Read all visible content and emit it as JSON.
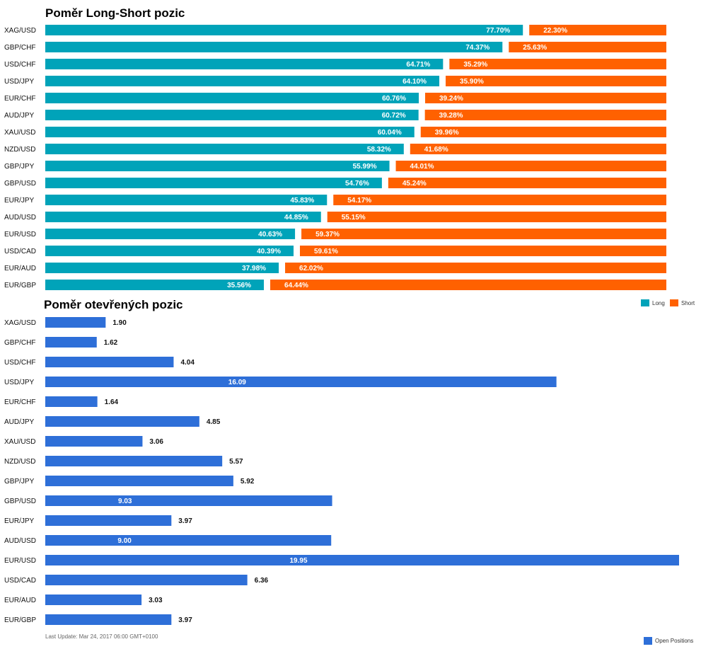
{
  "colors": {
    "long": "#00a3b9",
    "short": "#ff6100",
    "open": "#2e6fd8"
  },
  "chart_data": [
    {
      "type": "bar",
      "stacked": true,
      "orientation": "horizontal",
      "title": "Poměr Long-Short pozic",
      "categories": [
        "XAG/USD",
        "GBP/CHF",
        "USD/CHF",
        "USD/JPY",
        "EUR/CHF",
        "AUD/JPY",
        "XAU/USD",
        "NZD/USD",
        "GBP/JPY",
        "GBP/USD",
        "EUR/JPY",
        "AUD/USD",
        "EUR/USD",
        "USD/CAD",
        "EUR/AUD",
        "EUR/GBP"
      ],
      "series": [
        {
          "name": "Long",
          "values": [
            77.7,
            74.37,
            64.71,
            64.1,
            60.76,
            60.72,
            60.04,
            58.32,
            55.99,
            54.76,
            45.83,
            44.85,
            40.63,
            40.39,
            37.98,
            35.56
          ],
          "labels": [
            "77.70%",
            "74.37%",
            "64.71%",
            "64.10%",
            "60.76%",
            "60.72%",
            "60.04%",
            "58.32%",
            "55.99%",
            "54.76%",
            "45.83%",
            "44.85%",
            "40.63%",
            "40.39%",
            "37.98%",
            "35.56%"
          ]
        },
        {
          "name": "Short",
          "values": [
            22.3,
            25.63,
            35.29,
            35.9,
            39.24,
            39.28,
            39.96,
            41.68,
            44.01,
            45.24,
            54.17,
            55.15,
            59.37,
            59.61,
            62.02,
            64.44
          ],
          "labels": [
            "22.30%",
            "25.63%",
            "35.29%",
            "35.90%",
            "39.24%",
            "39.28%",
            "39.96%",
            "41.68%",
            "44.01%",
            "45.24%",
            "54.17%",
            "55.15%",
            "59.37%",
            "59.61%",
            "62.02%",
            "64.44%"
          ]
        }
      ],
      "xlim": [
        0,
        100
      ],
      "legend": "bottom-right",
      "grid": false
    },
    {
      "type": "bar",
      "orientation": "horizontal",
      "title": "Poměr otevřených pozic",
      "categories": [
        "XAG/USD",
        "GBP/CHF",
        "USD/CHF",
        "USD/JPY",
        "EUR/CHF",
        "AUD/JPY",
        "XAU/USD",
        "NZD/USD",
        "GBP/JPY",
        "GBP/USD",
        "EUR/JPY",
        "AUD/USD",
        "EUR/USD",
        "USD/CAD",
        "EUR/AUD",
        "EUR/GBP"
      ],
      "series": [
        {
          "name": "Open Positions",
          "values": [
            1.9,
            1.62,
            4.04,
            16.09,
            1.64,
            4.85,
            3.06,
            5.57,
            5.92,
            9.03,
            3.97,
            9.0,
            19.95,
            6.36,
            3.03,
            3.97
          ],
          "labels": [
            "1.90",
            "1.62",
            "4.04",
            "16.09",
            "1.64",
            "4.85",
            "3.06",
            "5.57",
            "5.92",
            "9.03",
            "3.97",
            "9.00",
            "19.95",
            "6.36",
            "3.03",
            "3.97"
          ]
        }
      ],
      "xlim": [
        0,
        19.95
      ],
      "legend": "bottom-right",
      "grid": false
    }
  ],
  "footnote": "Last Update: Mar 24, 2017 06:00 GMT+0100"
}
